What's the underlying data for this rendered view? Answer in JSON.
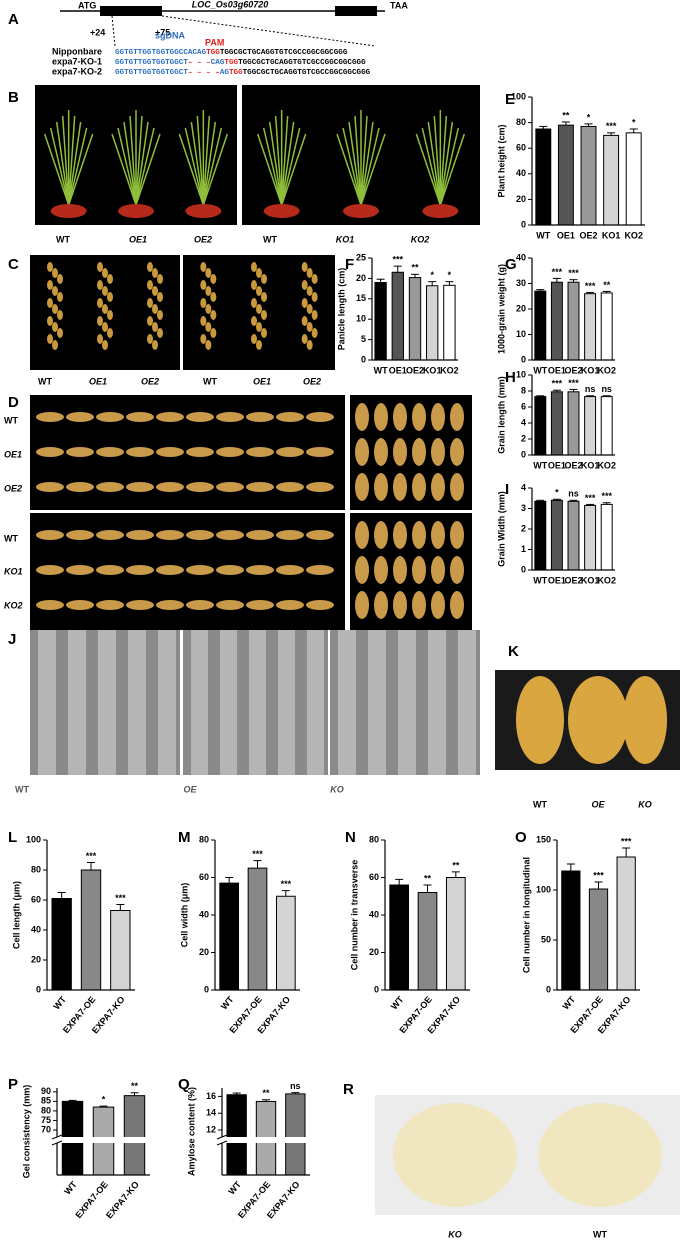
{
  "gene_diagram": {
    "panel": "A",
    "start": "ATG",
    "gene": "LOC_Os03g60720",
    "stop": "TAA",
    "pos1": "+24",
    "pos2": "+75",
    "guide": "sgDNA",
    "pam": "PAM",
    "rows": [
      {
        "name": "Nipponbare",
        "seq": [
          {
            "text": "GGTGTTGGTGGTGGCCACAG",
            "color": "#2b6fc2"
          },
          {
            "text": "TGG",
            "color": "#e02020"
          },
          {
            "text": "TGGCGCTGCAGGTGTCGCCGGCGGCGGG",
            "color": "#000000"
          }
        ]
      },
      {
        "name": "expa7-KO-1",
        "seq": [
          {
            "text": "GGTGTTGGTGGTGGCT",
            "color": "#2b6fc2"
          },
          {
            "text": "– – –",
            "color": "#e02020"
          },
          {
            "text": "CAG",
            "color": "#2b6fc2"
          },
          {
            "text": "TGG",
            "color": "#e02020"
          },
          {
            "text": "TGGCGCTGCAGGTGTCGCCGGCGGCGGG",
            "color": "#000000"
          }
        ]
      },
      {
        "name": "expa7-KO-2",
        "seq": [
          {
            "text": "GGTGTTGGTGGTGGCT",
            "color": "#2b6fc2"
          },
          {
            "text": "– – – –",
            "color": "#e02020"
          },
          {
            "text": "AG",
            "color": "#2b6fc2"
          },
          {
            "text": "TGG",
            "color": "#e02020"
          },
          {
            "text": "TGGCGCTGCAGGTGTCGCCGGCGGCGGG",
            "color": "#000000"
          }
        ]
      }
    ]
  },
  "photos": [
    {
      "panel": "B",
      "labels": [
        "WT",
        "OE1",
        "OE2",
        "WT",
        "KO1",
        "KO2"
      ]
    },
    {
      "panel": "C",
      "labels": [
        "WT",
        "OE1",
        "OE2",
        "WT",
        "OE1",
        "OE2"
      ]
    },
    {
      "panel": "D",
      "labels": [
        "WT",
        "OE1",
        "OE2",
        "WT",
        "KO1",
        "KO2"
      ]
    },
    {
      "panel": "J",
      "labels": [
        "WT",
        "OE",
        "KO"
      ]
    },
    {
      "panel": "K",
      "labels": [
        "WT",
        "OE",
        "KO"
      ]
    },
    {
      "panel": "R",
      "labels": [
        "KO",
        "WT"
      ]
    }
  ],
  "chart_data": [
    {
      "type": "bar",
      "panel": "E",
      "ylabel": "Plant height (cm)",
      "categories": [
        "WT",
        "OE1",
        "OE2",
        "KO1",
        "KO2"
      ],
      "values": [
        75,
        78,
        77,
        70,
        72
      ],
      "errors": [
        2,
        2.5,
        2,
        2,
        3
      ],
      "annotations": [
        null,
        "**",
        "*",
        "***",
        "*"
      ],
      "colors": [
        "#000000",
        "#555555",
        "#999999",
        "#d4d4d4",
        "#ffffff"
      ],
      "ylim": [
        0,
        100
      ],
      "yticks": [
        0,
        20,
        40,
        60,
        80,
        100
      ]
    },
    {
      "type": "bar",
      "panel": "F",
      "ylabel": "Panicle length (cm)",
      "categories": [
        "WT",
        "OE1",
        "OE2",
        "KO1",
        "KO2"
      ],
      "values": [
        19,
        21.5,
        20.2,
        18.2,
        18.3
      ],
      "errors": [
        0.8,
        1.5,
        0.8,
        1,
        0.9
      ],
      "annotations": [
        null,
        "***",
        "**",
        "*",
        "*"
      ],
      "colors": [
        "#000000",
        "#555555",
        "#999999",
        "#d4d4d4",
        "#ffffff"
      ],
      "ylim": [
        0,
        25
      ],
      "yticks": [
        0,
        5,
        10,
        15,
        20,
        25
      ]
    },
    {
      "type": "bar",
      "panel": "G",
      "ylabel": "1000-grain weight (g)",
      "categories": [
        "WT",
        "OE1",
        "OE2",
        "KO1",
        "KO2"
      ],
      "values": [
        27,
        30.5,
        30.5,
        26,
        26.3
      ],
      "errors": [
        0.6,
        1.5,
        1,
        0.5,
        0.6
      ],
      "annotations": [
        null,
        "***",
        "***",
        "***",
        "**"
      ],
      "colors": [
        "#000000",
        "#555555",
        "#999999",
        "#d4d4d4",
        "#ffffff"
      ],
      "ylim": [
        0,
        40
      ],
      "yticks": [
        0,
        10,
        20,
        30,
        40
      ]
    },
    {
      "type": "bar",
      "panel": "H",
      "ylabel": "Grain length (mm)",
      "categories": [
        "WT",
        "OE1",
        "OE2",
        "KO1",
        "KO2"
      ],
      "values": [
        7.3,
        7.9,
        7.9,
        7.3,
        7.3
      ],
      "errors": [
        0.1,
        0.2,
        0.3,
        0.1,
        0.1
      ],
      "annotations": [
        null,
        "***",
        "***",
        "ns",
        "ns"
      ],
      "colors": [
        "#000000",
        "#555555",
        "#999999",
        "#d4d4d4",
        "#ffffff"
      ],
      "ylim": [
        0,
        10
      ],
      "yticks": [
        0,
        2,
        4,
        6,
        8,
        10
      ]
    },
    {
      "type": "bar",
      "panel": "I",
      "ylabel": "Grain Width (mm)",
      "categories": [
        "WT",
        "OE1",
        "OE2",
        "KO1",
        "KO2"
      ],
      "values": [
        3.35,
        3.4,
        3.35,
        3.15,
        3.2
      ],
      "errors": [
        0.05,
        0.05,
        0.05,
        0.05,
        0.08
      ],
      "annotations": [
        null,
        "*",
        "ns",
        "***",
        "***"
      ],
      "colors": [
        "#000000",
        "#555555",
        "#999999",
        "#d4d4d4",
        "#ffffff"
      ],
      "ylim": [
        0,
        4
      ],
      "yticks": [
        0,
        1,
        2,
        3,
        4
      ]
    },
    {
      "type": "bar",
      "panel": "L",
      "ylabel": "Cell length (μm)",
      "categories": [
        "WT",
        "EXPA7-OE",
        "EXPA7-KO"
      ],
      "values": [
        61,
        80,
        53
      ],
      "errors": [
        4,
        5,
        4
      ],
      "annotations": [
        null,
        "***",
        "***"
      ],
      "colors": [
        "#000000",
        "#888888",
        "#d4d4d4"
      ],
      "ylim": [
        0,
        100
      ],
      "yticks": [
        0,
        20,
        40,
        60,
        80,
        100
      ]
    },
    {
      "type": "bar",
      "panel": "M",
      "ylabel": "Cell width (μm)",
      "categories": [
        "WT",
        "EXPA7-OE",
        "EXPA7-KO"
      ],
      "values": [
        57,
        65,
        50
      ],
      "errors": [
        3,
        4,
        3
      ],
      "annotations": [
        null,
        "***",
        "***"
      ],
      "colors": [
        "#000000",
        "#888888",
        "#d4d4d4"
      ],
      "ylim": [
        0,
        80
      ],
      "yticks": [
        0,
        20,
        40,
        60,
        80
      ]
    },
    {
      "type": "bar",
      "panel": "N",
      "ylabel": "Cell number in transverse",
      "categories": [
        "WT",
        "EXPA7-OE",
        "EXPA7-KO"
      ],
      "values": [
        56,
        52,
        60
      ],
      "errors": [
        3,
        4,
        3
      ],
      "annotations": [
        null,
        "**",
        "**"
      ],
      "colors": [
        "#000000",
        "#888888",
        "#d4d4d4"
      ],
      "ylim": [
        0,
        80
      ],
      "yticks": [
        0,
        20,
        40,
        60,
        80
      ]
    },
    {
      "type": "bar",
      "panel": "O",
      "ylabel": "Cell number in longitudinal",
      "categories": [
        "WT",
        "EXPA7-OE",
        "EXPA7-KO"
      ],
      "values": [
        119,
        101,
        133
      ],
      "errors": [
        7,
        7,
        9
      ],
      "annotations": [
        null,
        "***",
        "***"
      ],
      "colors": [
        "#000000",
        "#888888",
        "#d4d4d4"
      ],
      "ylim": [
        0,
        150
      ],
      "yticks": [
        0,
        50,
        100,
        150
      ]
    },
    {
      "type": "bar",
      "panel": "P",
      "ylabel": "Gel consistency (mm)",
      "categories": [
        "WT",
        "EXPA7-OE",
        "EXPA7-KO"
      ],
      "values": [
        85,
        82,
        88
      ],
      "errors": [
        0.5,
        0.5,
        1.5
      ],
      "annotations": [
        null,
        "*",
        "**"
      ],
      "colors": [
        "#000000",
        "#aaaaaa",
        "#777777"
      ],
      "ylim": [
        70,
        92
      ],
      "yticks": [
        70,
        75,
        80,
        85,
        90
      ],
      "axis_break": true
    },
    {
      "type": "bar",
      "panel": "Q",
      "ylabel": "Amylose content (%)",
      "categories": [
        "WT",
        "EXPA7-OE",
        "EXPA7-KO"
      ],
      "values": [
        16.2,
        15.4,
        16.3
      ],
      "errors": [
        0.2,
        0.2,
        0.15
      ],
      "annotations": [
        null,
        "**",
        "ns"
      ],
      "colors": [
        "#000000",
        "#aaaaaa",
        "#777777"
      ],
      "ylim": [
        12,
        17
      ],
      "yticks": [
        12,
        14,
        16
      ],
      "axis_break": true
    }
  ]
}
